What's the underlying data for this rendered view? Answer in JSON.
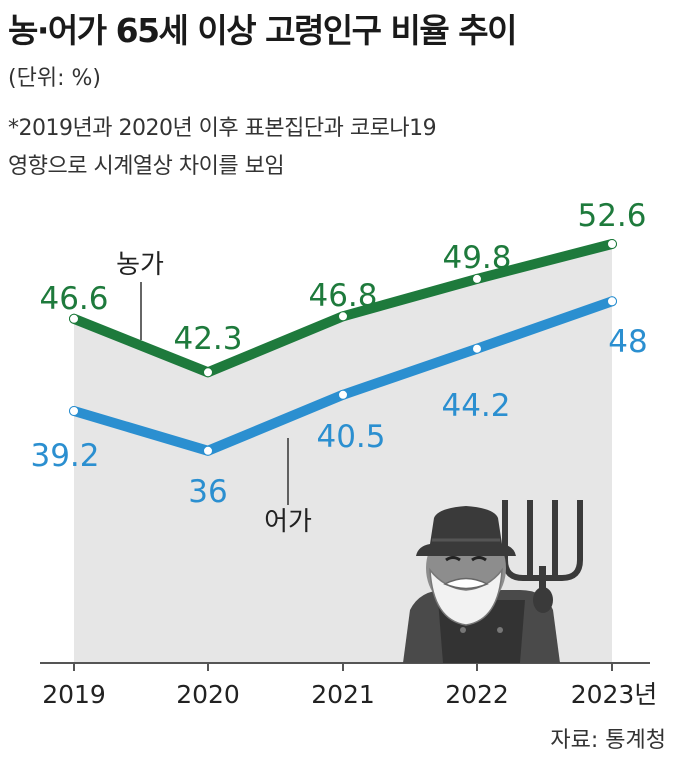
{
  "title": "농·어가 65세 이상 고령인구 비율 추이",
  "unit_label": "(단위: %)",
  "note_lines": [
    "*2019년과 2020년 이후 표본집단과 코로나19",
    "영향으로 시계열상 차이를 보임"
  ],
  "source": "자료: 통계청",
  "x_unit_suffix": "년",
  "colors": {
    "farm": "#1e7a3c",
    "fish": "#2b8fd0",
    "area": "#e6e6e6"
  },
  "chart_data": {
    "type": "line",
    "categories": [
      "2019",
      "2020",
      "2021",
      "2022",
      "2023"
    ],
    "series": [
      {
        "name": "농가",
        "values": [
          46.6,
          42.3,
          46.8,
          49.8,
          52.6
        ]
      },
      {
        "name": "어가",
        "values": [
          39.2,
          36,
          40.5,
          44.2,
          48
        ]
      }
    ],
    "value_labels": [
      [
        "46.6",
        "42.3",
        "46.8",
        "49.8",
        "52.6"
      ],
      [
        "39.2",
        "36",
        "40.5",
        "44.2",
        "48"
      ]
    ]
  }
}
